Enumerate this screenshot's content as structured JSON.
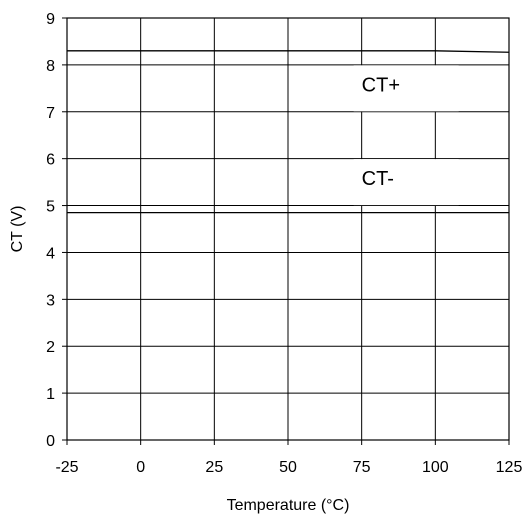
{
  "chart_data": {
    "type": "line",
    "title": "",
    "xlabel": "Temperature (°C)",
    "ylabel": "CT (V)",
    "xlim": [
      -25,
      125
    ],
    "ylim": [
      0,
      9
    ],
    "xticks": [
      "-25",
      "0",
      "25",
      "50",
      "75",
      "100",
      "125"
    ],
    "yticks": [
      "0",
      "1",
      "2",
      "3",
      "4",
      "5",
      "6",
      "7",
      "8",
      "9"
    ],
    "grid": true,
    "series": [
      {
        "name": "CT+",
        "x": [
          -25,
          0,
          25,
          50,
          75,
          100,
          125
        ],
        "y": [
          8.3,
          8.3,
          8.3,
          8.3,
          8.3,
          8.3,
          8.27
        ]
      },
      {
        "name": "CT-",
        "x": [
          -25,
          0,
          25,
          50,
          75,
          100,
          125
        ],
        "y": [
          4.85,
          4.85,
          4.85,
          4.85,
          4.85,
          4.85,
          4.85
        ]
      }
    ],
    "annotations": [
      {
        "text": "CT+",
        "x": 75,
        "y": 7.5
      },
      {
        "text": "CT-",
        "x": 75,
        "y": 5.5
      }
    ]
  }
}
